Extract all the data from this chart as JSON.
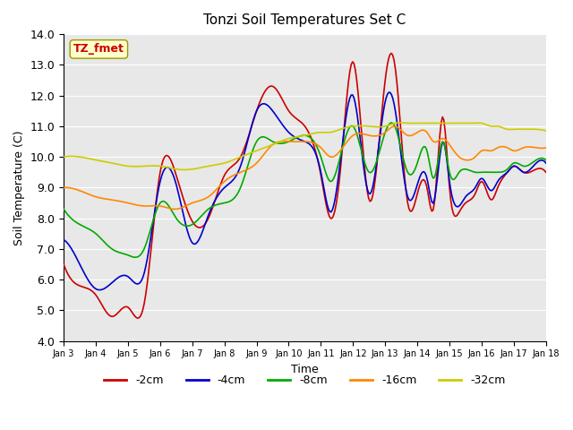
{
  "title": "Tonzi Soil Temperatures Set C",
  "xlabel": "Time",
  "ylabel": "Soil Temperature (C)",
  "ylim": [
    4.0,
    14.0
  ],
  "yticks": [
    4.0,
    5.0,
    6.0,
    7.0,
    8.0,
    9.0,
    10.0,
    11.0,
    12.0,
    13.0,
    14.0
  ],
  "xtick_labels": [
    "Jan 3",
    "Jan 4",
    "Jan 5",
    "Jan 6",
    "Jan 7",
    "Jan 8",
    "Jan 9",
    "Jan 10",
    "Jan 11",
    "Jan 12",
    "Jan 13",
    "Jan 14",
    "Jan 15",
    "Jan 16",
    "Jan 17",
    "Jan 18"
  ],
  "colors": {
    "-2cm": "#cc0000",
    "-4cm": "#0000cc",
    "-8cm": "#00aa00",
    "-16cm": "#ff8800",
    "-32cm": "#cccc00"
  },
  "background_color": "#e8e8e8",
  "annotation_text": "TZ_fmet",
  "annotation_color": "#cc0000",
  "annotation_bg": "#ffffcc",
  "legend_entries": [
    "-2cm",
    "-4cm",
    "-8cm",
    "-16cm",
    "-32cm"
  ],
  "n_points": 360
}
